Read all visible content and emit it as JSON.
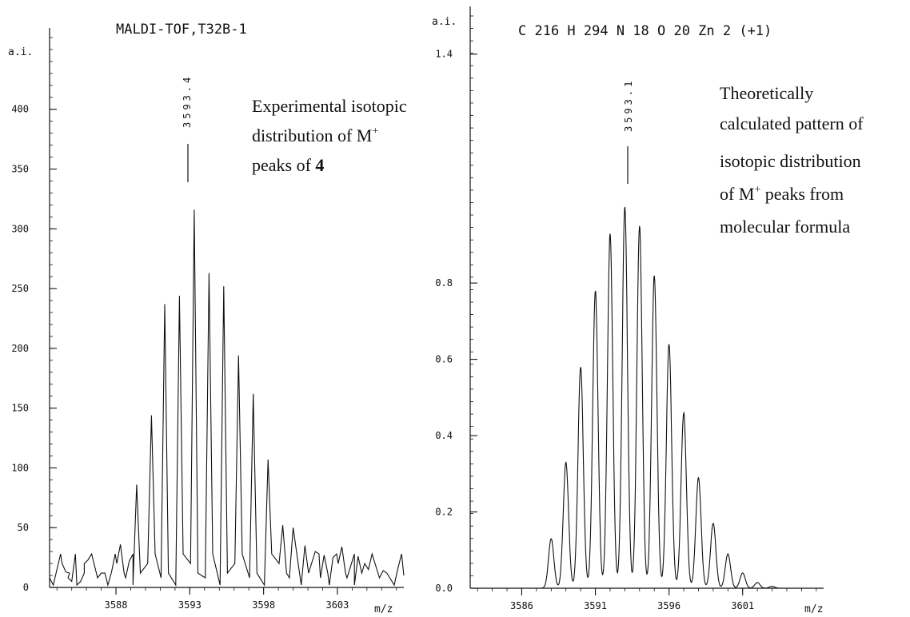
{
  "chart_data": [
    {
      "type": "line",
      "title": "MALDI-TOF,T32B-1",
      "ylabel": "a.i.",
      "xlabel": "m/z",
      "xlim": [
        3583.5,
        3607.5
      ],
      "ylim": [
        0,
        460
      ],
      "xticks": [
        3588,
        3593,
        3598,
        3603
      ],
      "yticks": [
        0,
        50,
        100,
        150,
        200,
        250,
        300,
        350,
        400
      ],
      "grid": false,
      "peak_label": "3593.4",
      "annotation": {
        "line1": "Experimental isotopic",
        "line2a": "distribution of M",
        "line2sup": "+",
        "line3a": "peaks of ",
        "line3b": "4"
      },
      "peaks": [
        {
          "x": 3584.0,
          "y": 15
        },
        {
          "x": 3584.6,
          "y": 13
        },
        {
          "x": 3585.0,
          "y": 5
        },
        {
          "x": 3585.6,
          "y": 5
        },
        {
          "x": 3586.1,
          "y": 23
        },
        {
          "x": 3587.0,
          "y": 12
        },
        {
          "x": 3587.7,
          "y": 13
        },
        {
          "x": 3588.3,
          "y": 36
        },
        {
          "x": 3588.9,
          "y": 22
        },
        {
          "x": 3589.4,
          "y": 86
        },
        {
          "x": 3590.4,
          "y": 144
        },
        {
          "x": 3591.3,
          "y": 237
        },
        {
          "x": 3592.3,
          "y": 244
        },
        {
          "x": 3593.3,
          "y": 316
        },
        {
          "x": 3594.3,
          "y": 263
        },
        {
          "x": 3595.3,
          "y": 252
        },
        {
          "x": 3596.3,
          "y": 194
        },
        {
          "x": 3597.3,
          "y": 162
        },
        {
          "x": 3598.3,
          "y": 107
        },
        {
          "x": 3599.3,
          "y": 52
        },
        {
          "x": 3600.0,
          "y": 50
        },
        {
          "x": 3600.8,
          "y": 35
        },
        {
          "x": 3601.5,
          "y": 30
        },
        {
          "x": 3602.1,
          "y": 27
        },
        {
          "x": 3602.7,
          "y": 25
        },
        {
          "x": 3603.3,
          "y": 34
        },
        {
          "x": 3603.9,
          "y": 18
        },
        {
          "x": 3604.4,
          "y": 26
        },
        {
          "x": 3605.1,
          "y": 15
        },
        {
          "x": 3606.1,
          "y": 14
        },
        {
          "x": 3607.1,
          "y": 16
        }
      ]
    },
    {
      "type": "line",
      "title": "C 216 H 294 N 18 O 20 Zn 2 (+1)",
      "ylabel": "a.i.",
      "xlabel": "m/z",
      "xlim": [
        3582.5,
        3606.5
      ],
      "ylim": [
        0,
        1.5
      ],
      "xticks": [
        3586,
        3591,
        3596,
        3601
      ],
      "yticks": [
        0.0,
        0.2,
        0.4,
        0.6,
        0.8,
        1.4
      ],
      "yticklabels": [
        "0.0",
        "0.2",
        "0.4",
        "0.6",
        "0.8",
        "1.4"
      ],
      "grid": false,
      "peak_label": "3593.1",
      "annotation": {
        "line1": "Theoretically",
        "line2": "calculated pattern of",
        "line3": "isotopic distribution",
        "line4a": "of M",
        "line4sup": "+",
        "line4b": " peaks from",
        "line5": "molecular formula"
      },
      "x": [
        3588.0,
        3589.0,
        3590.0,
        3591.0,
        3592.0,
        3593.0,
        3594.0,
        3595.0,
        3596.0,
        3597.0,
        3598.0,
        3599.0,
        3600.0,
        3601.0,
        3602.0,
        3603.0
      ],
      "y": [
        0.13,
        0.33,
        0.58,
        0.78,
        0.93,
        1.0,
        0.95,
        0.82,
        0.64,
        0.46,
        0.29,
        0.17,
        0.09,
        0.04,
        0.015,
        0.005
      ]
    }
  ]
}
